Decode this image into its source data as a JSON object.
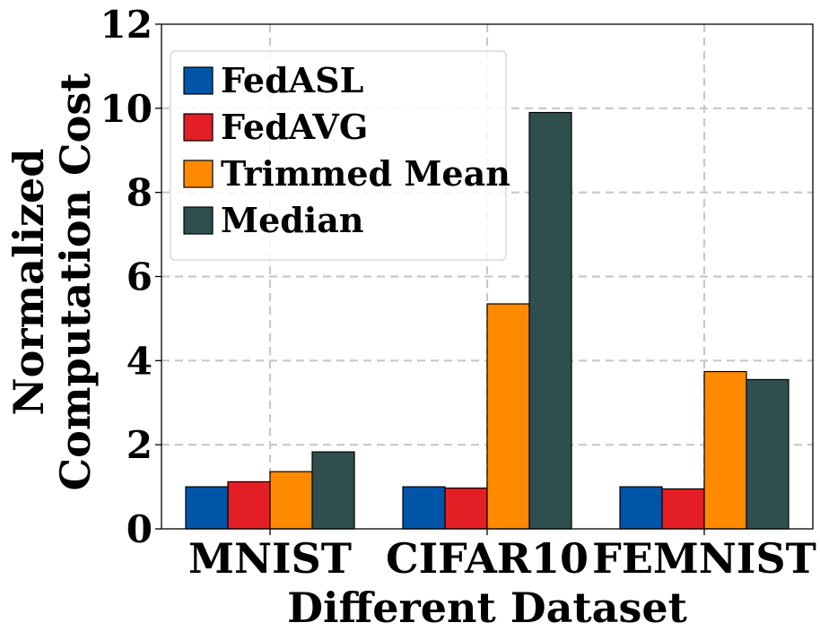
{
  "chart_data": {
    "type": "bar",
    "title": "",
    "xlabel": "Different Dataset",
    "ylabel_lines": [
      "Normalized",
      "Computation Cost"
    ],
    "categories": [
      "MNIST",
      "CIFAR10",
      "FEMNIST"
    ],
    "series": [
      {
        "name": "FedASL",
        "color": "#0055a8",
        "values": [
          1.0,
          1.0,
          1.0
        ]
      },
      {
        "name": "FedAVG",
        "color": "#e31e24",
        "values": [
          1.12,
          0.97,
          0.95
        ]
      },
      {
        "name": "Trimmed Mean",
        "color": "#ff8a00",
        "values": [
          1.36,
          5.35,
          3.74
        ]
      },
      {
        "name": "Median",
        "color": "#2f4f4f",
        "values": [
          1.83,
          9.9,
          3.55
        ]
      }
    ],
    "ylim": [
      0,
      12
    ],
    "yticks": [
      0,
      2,
      4,
      6,
      8,
      10,
      12
    ],
    "ytick_labels": [
      "0",
      "2",
      "4",
      "6",
      "8",
      "10",
      "12"
    ],
    "grid": true,
    "legend_position": "top-left"
  }
}
